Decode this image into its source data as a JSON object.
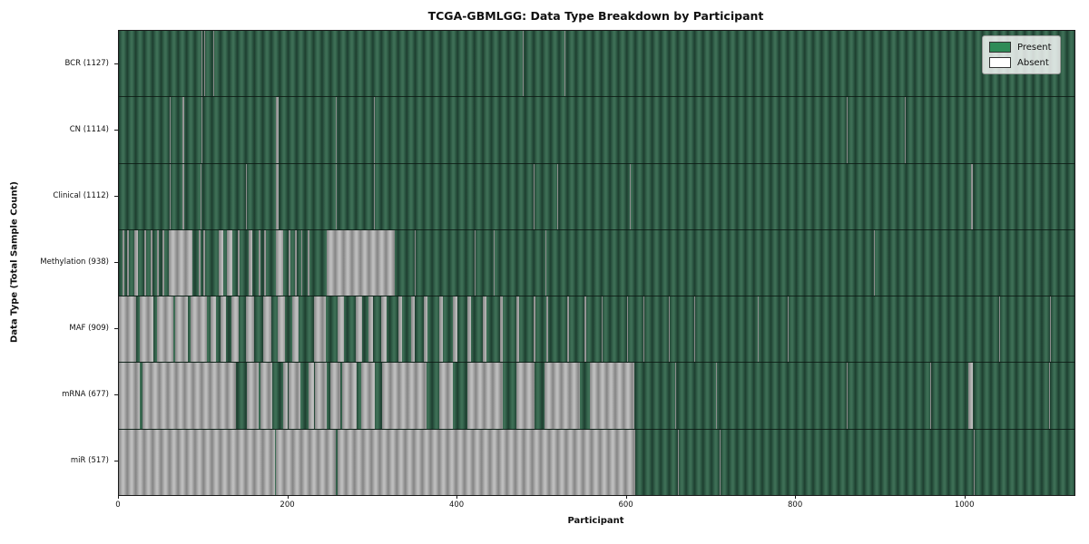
{
  "title": "TCGA-GBMLGG: Data Type Breakdown by Participant",
  "chart_data": {
    "type": "heatmap",
    "title": "TCGA-GBMLGG: Data Type Breakdown by Participant",
    "xlabel": "Participant",
    "ylabel": "Data Type (Total Sample Count)",
    "x_ticks": [
      0,
      200,
      400,
      600,
      800,
      1000
    ],
    "x_max": 1129,
    "grid": false,
    "legend": {
      "position": "upper right",
      "entries": [
        {
          "label": "Present",
          "color": "#2e8b57"
        },
        {
          "label": "Absent",
          "color": "#ffffff"
        }
      ]
    },
    "rows": [
      {
        "name": "BCR",
        "label": "BCR (1127)",
        "total_samples": 1127,
        "absent_segments": [
          [
            98,
            99
          ],
          [
            101,
            102
          ],
          [
            112,
            113
          ],
          [
            477,
            478
          ],
          [
            526,
            527
          ]
        ]
      },
      {
        "name": "CN",
        "label": "CN (1114)",
        "total_samples": 1114,
        "absent_segments": [
          [
            60,
            61
          ],
          [
            75,
            77
          ],
          [
            98,
            99
          ],
          [
            185,
            189
          ],
          [
            256,
            257
          ],
          [
            301,
            302
          ],
          [
            860,
            861
          ],
          [
            928,
            929
          ]
        ]
      },
      {
        "name": "Clinical",
        "label": "Clinical (1112)",
        "total_samples": 1112,
        "absent_segments": [
          [
            60,
            61
          ],
          [
            75,
            77
          ],
          [
            96,
            97
          ],
          [
            150,
            151
          ],
          [
            185,
            189
          ],
          [
            256,
            257
          ],
          [
            301,
            302
          ],
          [
            490,
            491
          ],
          [
            518,
            519
          ],
          [
            604,
            605
          ],
          [
            1007,
            1009
          ]
        ]
      },
      {
        "name": "Methylation",
        "label": "Methylation (938)",
        "total_samples": 938,
        "absent_segments": [
          [
            4,
            6
          ],
          [
            10,
            12
          ],
          [
            18,
            23
          ],
          [
            30,
            32
          ],
          [
            38,
            40
          ],
          [
            45,
            47
          ],
          [
            52,
            54
          ],
          [
            59,
            87
          ],
          [
            94,
            96
          ],
          [
            100,
            102
          ],
          [
            118,
            123
          ],
          [
            128,
            134
          ],
          [
            140,
            143
          ],
          [
            153,
            158
          ],
          [
            165,
            167
          ],
          [
            172,
            174
          ],
          [
            185,
            194
          ],
          [
            201,
            203
          ],
          [
            208,
            210
          ],
          [
            215,
            217
          ],
          [
            223,
            225
          ],
          [
            246,
            326
          ],
          [
            350,
            351
          ],
          [
            420,
            421
          ],
          [
            443,
            444
          ],
          [
            504,
            505
          ],
          [
            892,
            893
          ]
        ]
      },
      {
        "name": "MAF",
        "label": "MAF (909)",
        "total_samples": 909,
        "absent_segments": [
          [
            0,
            20
          ],
          [
            25,
            41
          ],
          [
            45,
            64
          ],
          [
            67,
            82
          ],
          [
            85,
            104
          ],
          [
            108,
            115
          ],
          [
            120,
            126
          ],
          [
            133,
            142
          ],
          [
            150,
            160
          ],
          [
            170,
            180
          ],
          [
            188,
            196
          ],
          [
            205,
            212
          ],
          [
            230,
            244
          ],
          [
            258,
            266
          ],
          [
            280,
            287
          ],
          [
            295,
            300
          ],
          [
            310,
            316
          ],
          [
            330,
            334
          ],
          [
            345,
            350
          ],
          [
            360,
            365
          ],
          [
            378,
            383
          ],
          [
            395,
            400
          ],
          [
            412,
            416
          ],
          [
            430,
            434
          ],
          [
            450,
            453
          ],
          [
            470,
            473
          ],
          [
            490,
            492
          ],
          [
            505,
            507
          ],
          [
            530,
            532
          ],
          [
            550,
            552
          ],
          [
            570,
            572
          ],
          [
            600,
            602
          ],
          [
            620,
            621
          ],
          [
            650,
            651
          ],
          [
            680,
            681
          ],
          [
            755,
            756
          ],
          [
            790,
            791
          ],
          [
            1040,
            1041
          ],
          [
            1100,
            1101
          ]
        ]
      },
      {
        "name": "mRNA",
        "label": "mRNA (677)",
        "total_samples": 677,
        "absent_segments": [
          [
            0,
            25
          ],
          [
            28,
            138
          ],
          [
            151,
            165
          ],
          [
            167,
            181
          ],
          [
            194,
            199
          ],
          [
            200,
            214
          ],
          [
            224,
            230
          ],
          [
            232,
            246
          ],
          [
            250,
            262
          ],
          [
            264,
            281
          ],
          [
            286,
            302
          ],
          [
            311,
            363
          ],
          [
            378,
            395
          ],
          [
            412,
            454
          ],
          [
            470,
            491
          ],
          [
            503,
            545
          ],
          [
            556,
            609
          ],
          [
            657,
            658
          ],
          [
            705,
            706
          ],
          [
            860,
            861
          ],
          [
            958,
            959
          ],
          [
            1004,
            1009
          ],
          [
            1099,
            1100
          ]
        ]
      },
      {
        "name": "miR",
        "label": "miR (517)",
        "total_samples": 517,
        "absent_segments": [
          [
            0,
            184
          ],
          [
            186,
            256
          ],
          [
            258,
            610
          ],
          [
            660,
            661
          ],
          [
            710,
            711
          ],
          [
            1010,
            1011
          ]
        ]
      }
    ]
  },
  "colors": {
    "present_green": "#2e8b57",
    "present_bar_mid": "#2a5440",
    "absent_white": "#ffffff",
    "absent_bar_gray": "#9c9c9c",
    "axis": "#1a1a1a",
    "background": "#ffffff"
  }
}
